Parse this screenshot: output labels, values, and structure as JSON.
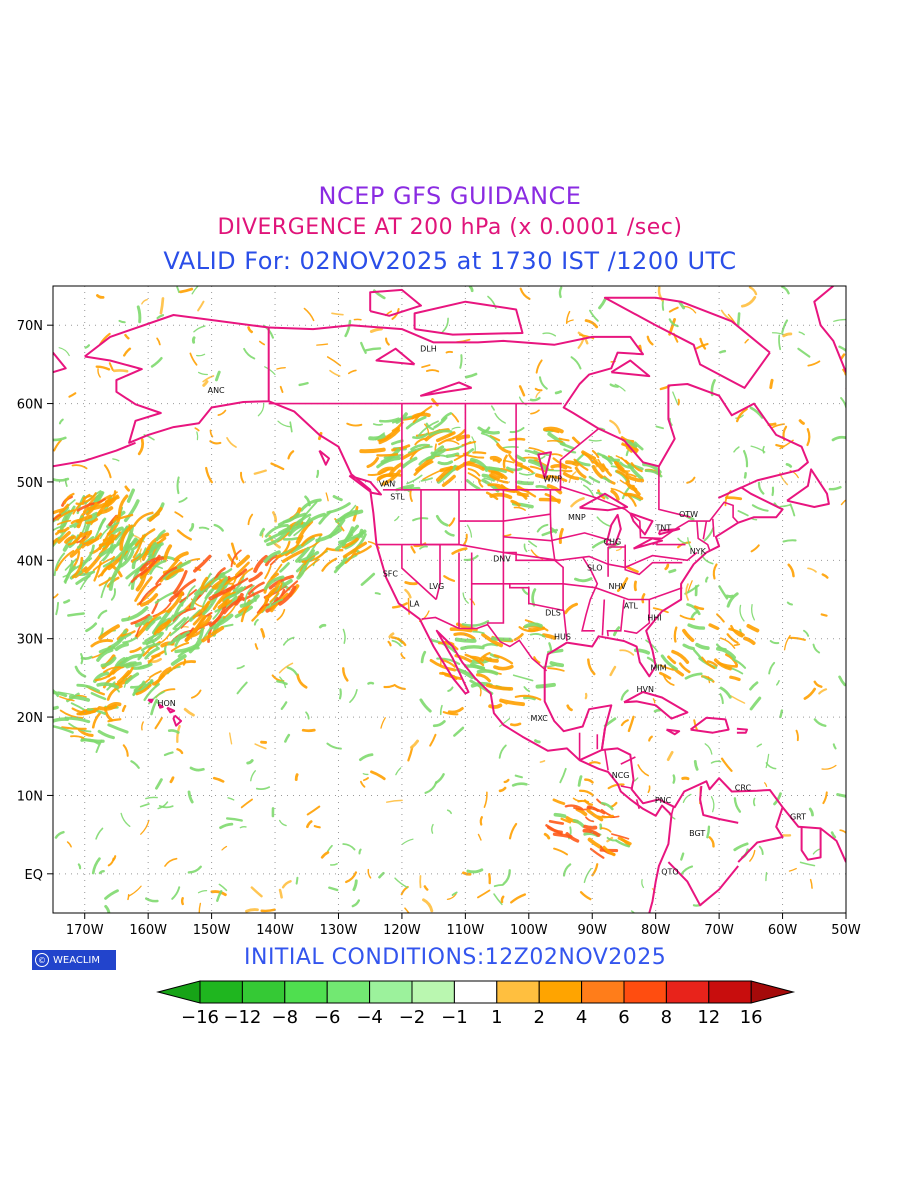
{
  "titles": {
    "line1": "NCEP GFS GUIDANCE",
    "line2": "DIVERGENCE AT 200 hPa (x 0.0001 /sec)",
    "line3": "VALID For: 02NOV2025 at 1730 IST /1200 UTC"
  },
  "initial_conditions": "INITIAL  CONDITIONS:12Z02NOV2025",
  "logo_text": "WEACLIM",
  "colors": {
    "coast": "#e8157f",
    "grid": "#999999",
    "neg": "#7ed96e",
    "pos": "#ffa000",
    "pos_strong": "#ff5a1a"
  },
  "lat_labels": [
    "70N",
    "60N",
    "50N",
    "40N",
    "30N",
    "20N",
    "10N",
    "EQ"
  ],
  "lon_labels": [
    "170W",
    "160W",
    "150W",
    "140W",
    "130W",
    "120W",
    "110W",
    "100W",
    "90W",
    "80W",
    "70W",
    "60W",
    "50W"
  ],
  "legend": {
    "labels": [
      "−16",
      "−12",
      "−8",
      "−6",
      "−4",
      "−2",
      "−1",
      "1",
      "2",
      "4",
      "6",
      "8",
      "12",
      "16"
    ],
    "colors": [
      "#17a317",
      "#1fb61f",
      "#35c935",
      "#4fdf4f",
      "#72e872",
      "#9cf29c",
      "#baf7b0",
      "#ffffff",
      "#ffbf3f",
      "#ffa400",
      "#ff7d1a",
      "#ff4d10",
      "#e8231b",
      "#c80d0d",
      "#a50a0a"
    ]
  },
  "cities": [
    {
      "code": "ANC",
      "lon": -150,
      "lat": 61.2
    },
    {
      "code": "DLH",
      "lon": -116.5,
      "lat": 66.5
    },
    {
      "code": "VAN",
      "lon": -123,
      "lat": 49.3
    },
    {
      "code": "STL",
      "lon": -121.2,
      "lat": 47.6
    },
    {
      "code": "WNP",
      "lon": -97.1,
      "lat": 49.9
    },
    {
      "code": "MNP",
      "lon": -93.2,
      "lat": 45
    },
    {
      "code": "TNT",
      "lon": -79.4,
      "lat": 43.7
    },
    {
      "code": "OTW",
      "lon": -75.7,
      "lat": 45.4
    },
    {
      "code": "CHG",
      "lon": -87.6,
      "lat": 41.9
    },
    {
      "code": "NYK",
      "lon": -74,
      "lat": 40.7
    },
    {
      "code": "DNV",
      "lon": -105,
      "lat": 39.7
    },
    {
      "code": "SFC",
      "lon": -122.4,
      "lat": 37.8
    },
    {
      "code": "LVG",
      "lon": -115.1,
      "lat": 36.2
    },
    {
      "code": "SLO",
      "lon": -90.2,
      "lat": 38.6
    },
    {
      "code": "NHV",
      "lon": -86.8,
      "lat": 36.2
    },
    {
      "code": "LA",
      "lon": -118.2,
      "lat": 34
    },
    {
      "code": "ATL",
      "lon": -84.4,
      "lat": 33.7
    },
    {
      "code": "DLS",
      "lon": -96.8,
      "lat": 32.8
    },
    {
      "code": "HHI",
      "lon": -80.7,
      "lat": 32.2
    },
    {
      "code": "HUS",
      "lon": -95.4,
      "lat": 29.8
    },
    {
      "code": "MIM",
      "lon": -80.2,
      "lat": 25.8
    },
    {
      "code": "HVN",
      "lon": -82.4,
      "lat": 23.1
    },
    {
      "code": "HON",
      "lon": -157.9,
      "lat": 21.3
    },
    {
      "code": "MXC",
      "lon": -99.1,
      "lat": 19.4
    },
    {
      "code": "NCG",
      "lon": -86.3,
      "lat": 12.1
    },
    {
      "code": "CRC",
      "lon": -66.9,
      "lat": 10.5
    },
    {
      "code": "PNC",
      "lon": -79.5,
      "lat": 8.9
    },
    {
      "code": "GRT",
      "lon": -58.2,
      "lat": 6.8
    },
    {
      "code": "BGT",
      "lon": -74.1,
      "lat": 4.7
    },
    {
      "code": "QTO",
      "lon": -78.5,
      "lat": -0.2
    }
  ]
}
